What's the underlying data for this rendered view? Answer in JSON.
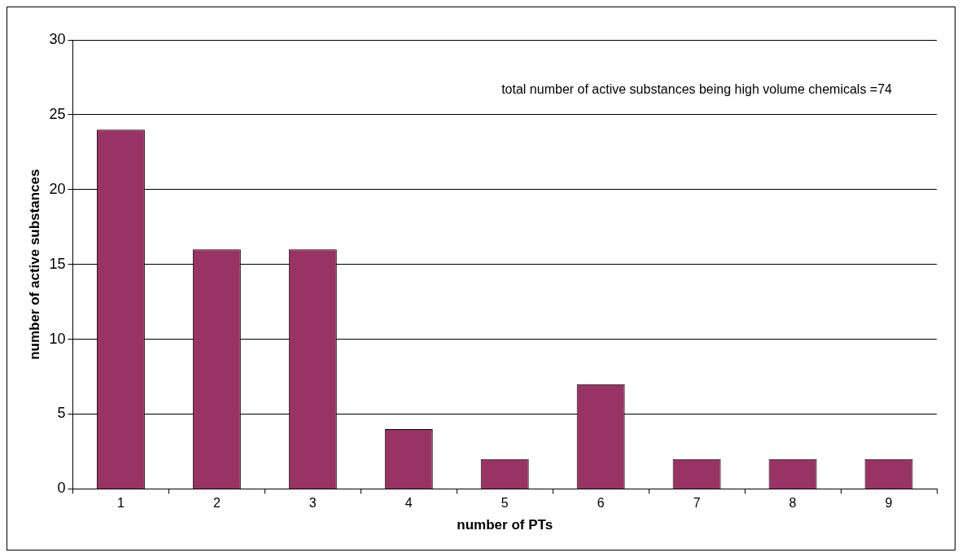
{
  "chart_data": {
    "type": "bar",
    "xlabel": "number of PTs",
    "ylabel": "number of active substances",
    "categories": [
      "1",
      "2",
      "3",
      "4",
      "5",
      "6",
      "7",
      "8",
      "9"
    ],
    "values": [
      24,
      16,
      16,
      4,
      2,
      7,
      2,
      2,
      2
    ],
    "color": "#993366",
    "ylim": [
      0,
      30
    ],
    "yticks": [
      0,
      5,
      10,
      15,
      20,
      25,
      30
    ],
    "grid": "y",
    "legend": false,
    "annotations": [
      "total number of active substances being high volume chemicals =74"
    ]
  }
}
